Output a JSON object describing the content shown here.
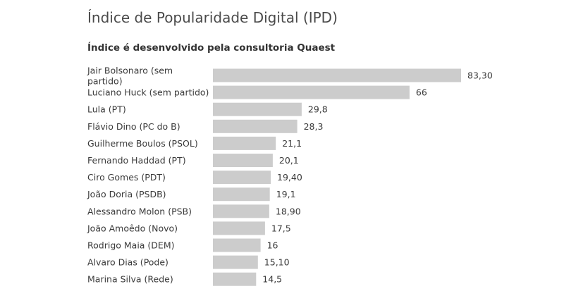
{
  "chart_data": {
    "type": "bar",
    "orientation": "horizontal",
    "title": "Índice de Popularidade Digital (IPD)",
    "subtitle": "Índice é desenvolvido pela consultoria Quaest",
    "xlim": [
      0,
      83.3
    ],
    "bar_color": "#cccccc",
    "categories": [
      [
        "Jair Bolsonaro (sem",
        "partido)"
      ],
      [
        "Luciano Huck (sem partido)"
      ],
      [
        "Lula (PT)"
      ],
      [
        "Flávio Dino (PC do B)"
      ],
      [
        "Guilherme Boulos (PSOL)"
      ],
      [
        "Fernando Haddad (PT)"
      ],
      [
        "Ciro Gomes (PDT)"
      ],
      [
        "João Doria (PSDB)"
      ],
      [
        "Alessandro Molon (PSB)"
      ],
      [
        "João Amoêdo (Novo)"
      ],
      [
        "Rodrigo Maia (DEM)"
      ],
      [
        "Alvaro Dias (Pode)"
      ],
      [
        "Marina Silva (Rede)"
      ]
    ],
    "values": [
      83.3,
      66,
      29.8,
      28.3,
      21.1,
      20.1,
      19.4,
      19.1,
      18.9,
      17.5,
      16,
      15.1,
      14.5
    ],
    "value_labels": [
      "83,30",
      "66",
      "29,8",
      "28,3",
      "21,1",
      "20,1",
      "19,40",
      "19,1",
      "18,90",
      "17,5",
      "16",
      "15,10",
      "14,5"
    ]
  }
}
